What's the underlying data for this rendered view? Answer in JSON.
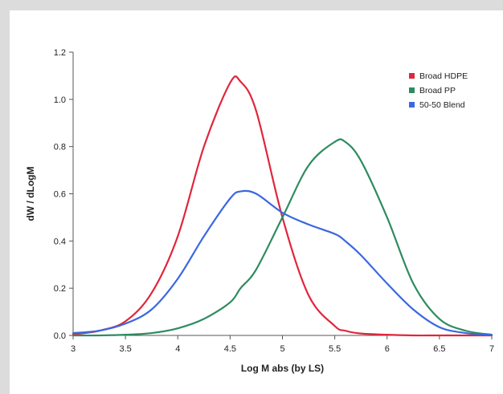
{
  "chart_data": {
    "type": "line",
    "title": "",
    "xlabel": "Log M abs (by LS)",
    "ylabel": "dW / dLogM",
    "xlim": [
      3,
      7
    ],
    "ylim": [
      0,
      1.2
    ],
    "x_ticks": [
      "3",
      "3.5",
      "4",
      "4.5",
      "5",
      "5.5",
      "6",
      "6.5",
      "7"
    ],
    "y_ticks": [
      "0.0",
      "0.2",
      "0.4",
      "0.6",
      "0.8",
      "1.0",
      "1.2"
    ],
    "grid": false,
    "legend_position": "top-right",
    "x": [
      3.0,
      3.25,
      3.5,
      3.75,
      4.0,
      4.25,
      4.5,
      4.6,
      4.75,
      5.0,
      5.25,
      5.5,
      5.6,
      5.75,
      6.0,
      6.25,
      6.5,
      6.75,
      7.0
    ],
    "series": [
      {
        "name": "Broad HDPE",
        "color": "#e0263c",
        "values": [
          0.005,
          0.02,
          0.06,
          0.18,
          0.42,
          0.8,
          1.07,
          1.075,
          0.95,
          0.5,
          0.17,
          0.04,
          0.02,
          0.008,
          0.003,
          0.0,
          0.0,
          0.0,
          0.0
        ]
      },
      {
        "name": "Broad PP",
        "color": "#2e8b5f",
        "values": [
          0.0,
          0.0,
          0.003,
          0.01,
          0.03,
          0.07,
          0.14,
          0.2,
          0.28,
          0.5,
          0.72,
          0.82,
          0.82,
          0.74,
          0.5,
          0.22,
          0.07,
          0.02,
          0.003
        ]
      },
      {
        "name": "50-50 Blend",
        "color": "#3a68e0",
        "values": [
          0.01,
          0.02,
          0.05,
          0.11,
          0.24,
          0.42,
          0.58,
          0.61,
          0.6,
          0.52,
          0.47,
          0.43,
          0.4,
          0.34,
          0.22,
          0.11,
          0.035,
          0.01,
          0.002
        ]
      }
    ]
  }
}
